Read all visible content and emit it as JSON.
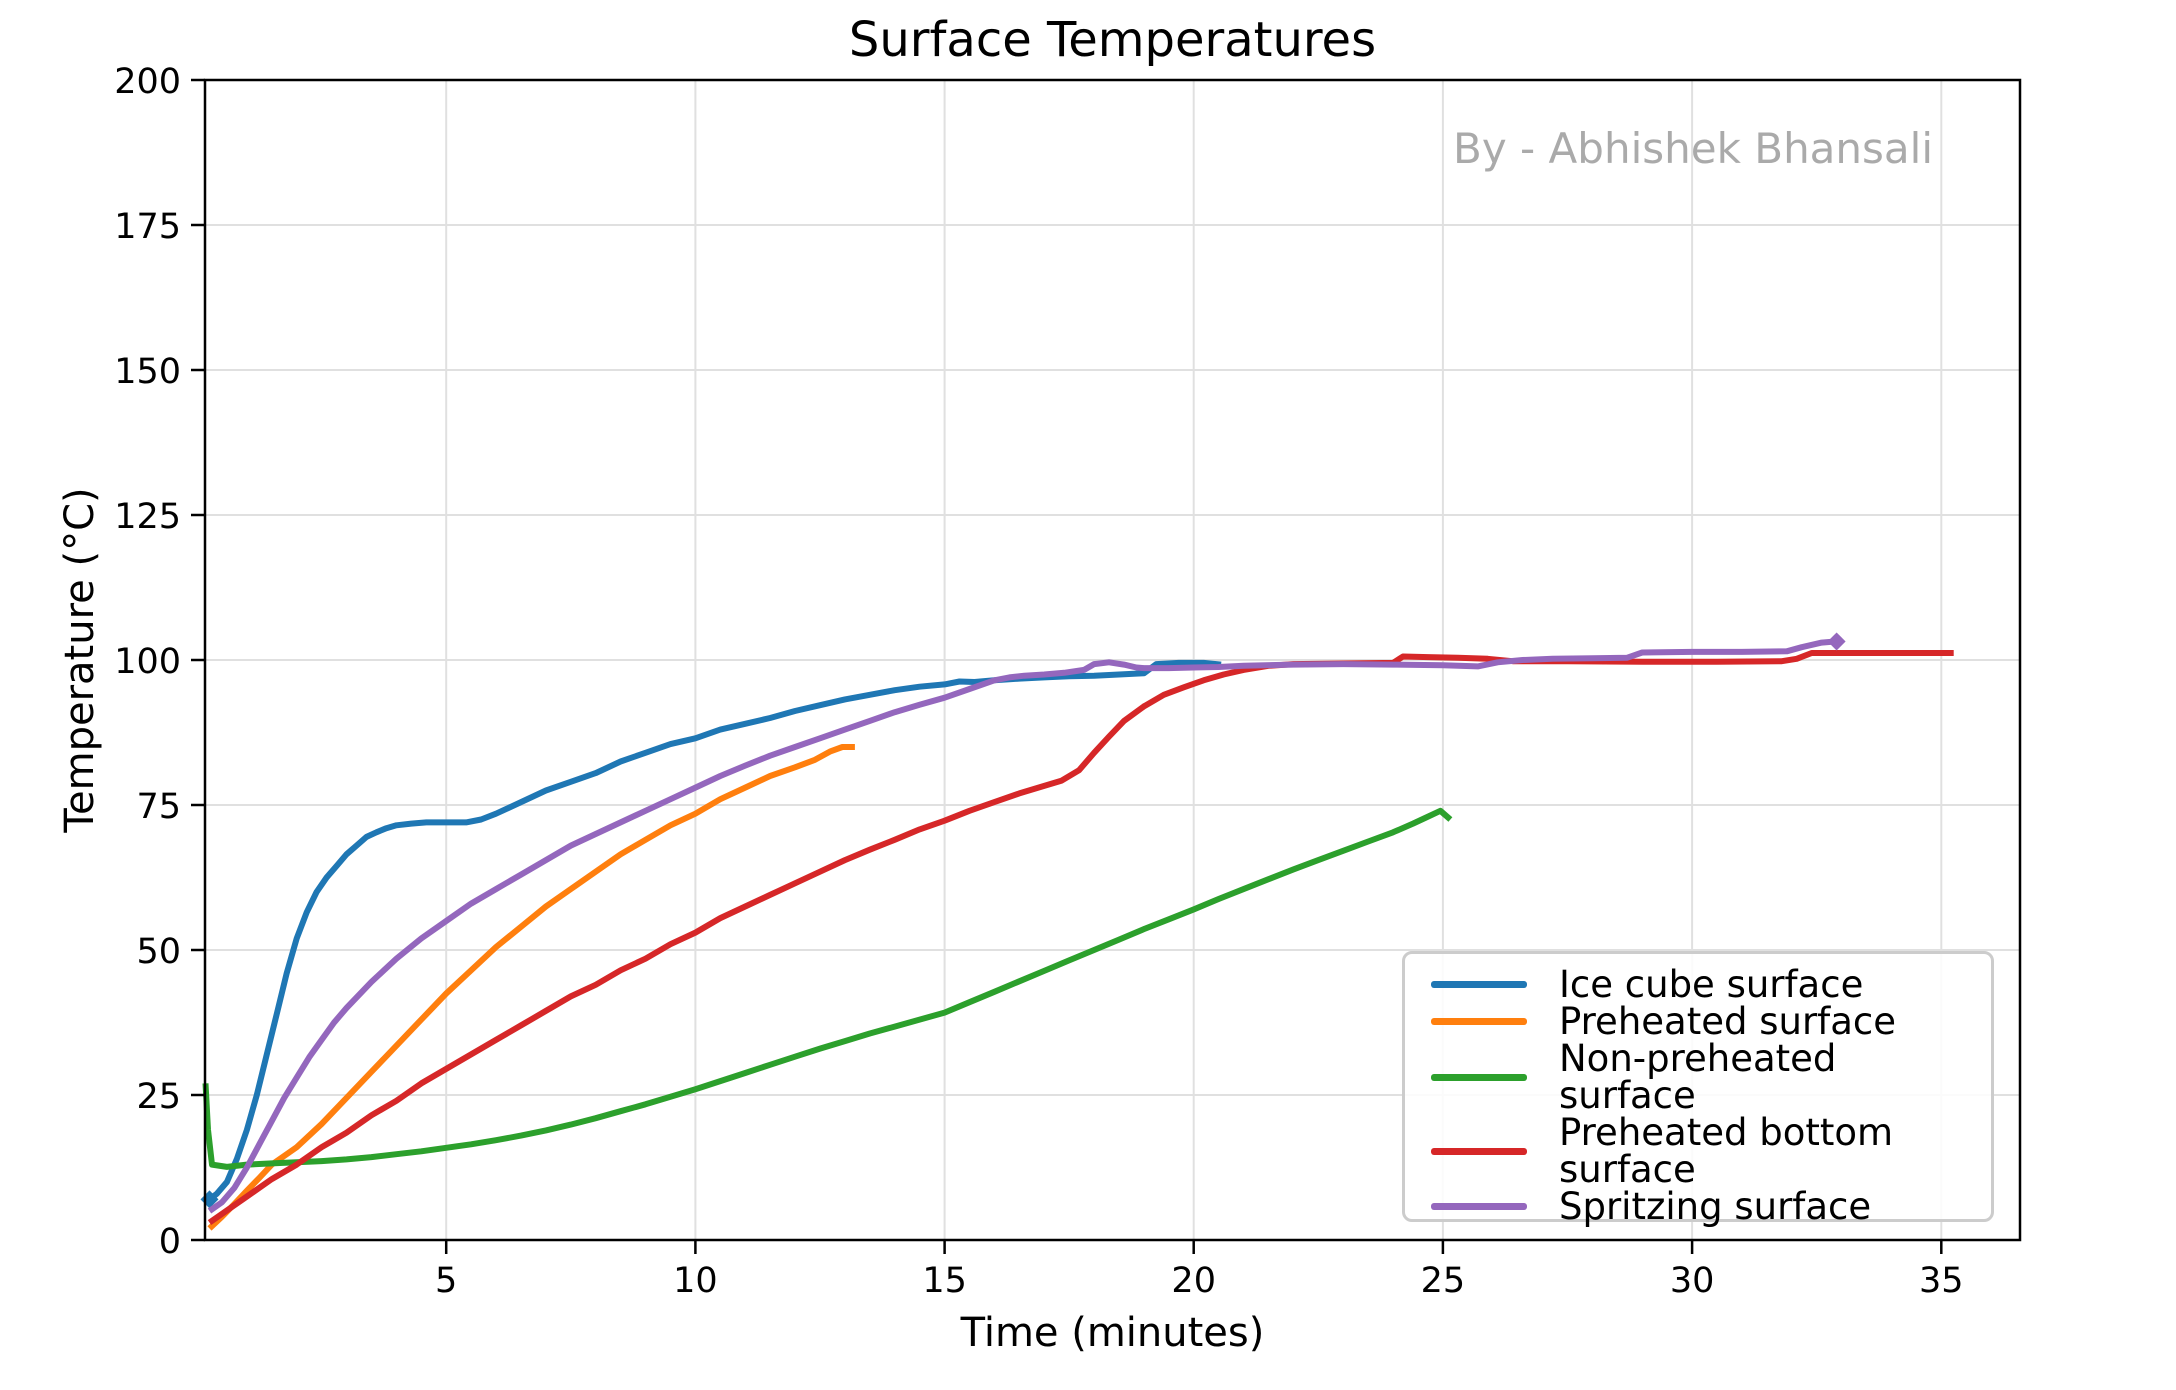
{
  "page": {
    "background": "#ffffff"
  },
  "chart_data": {
    "type": "line",
    "title": "Surface Temperatures",
    "annotation": "By - Abhishek Bhansali",
    "annotation_color": "#aaaaaa",
    "xlabel": "Time (minutes)",
    "ylabel": "Temperature (°C)",
    "xlim": [
      0.16,
      36.58
    ],
    "ylim": [
      0,
      200
    ],
    "xticks": [
      5,
      10,
      15,
      20,
      25,
      30,
      35
    ],
    "yticks": [
      0,
      25,
      50,
      75,
      100,
      125,
      150,
      175,
      200
    ],
    "grid": true,
    "grid_color": "#e0e0e0",
    "spine_color": "#000000",
    "legend_position": "lower right",
    "series": [
      {
        "name": "Ice cube surface",
        "color": "#1f77b4",
        "marker_start": true,
        "marker_end": false,
        "points": [
          [
            0.25,
            7
          ],
          [
            0.4,
            8
          ],
          [
            0.6,
            10
          ],
          [
            0.8,
            14
          ],
          [
            1,
            19
          ],
          [
            1.2,
            25
          ],
          [
            1.4,
            32
          ],
          [
            1.6,
            39
          ],
          [
            1.8,
            46
          ],
          [
            2,
            52
          ],
          [
            2.2,
            56.5
          ],
          [
            2.4,
            60
          ],
          [
            2.6,
            62.5
          ],
          [
            2.8,
            64.5
          ],
          [
            3,
            66.5
          ],
          [
            3.2,
            68
          ],
          [
            3.4,
            69.5
          ],
          [
            3.6,
            70.3
          ],
          [
            3.8,
            71
          ],
          [
            4,
            71.5
          ],
          [
            4.3,
            71.8
          ],
          [
            4.6,
            72
          ],
          [
            5,
            72
          ],
          [
            5.4,
            72
          ],
          [
            5.7,
            72.5
          ],
          [
            6,
            73.5
          ],
          [
            6.5,
            75.5
          ],
          [
            7,
            77.5
          ],
          [
            7.5,
            79
          ],
          [
            8,
            80.5
          ],
          [
            8.5,
            82.5
          ],
          [
            9,
            84
          ],
          [
            9.5,
            85.5
          ],
          [
            10,
            86.5
          ],
          [
            10.5,
            88
          ],
          [
            11,
            89
          ],
          [
            11.5,
            90
          ],
          [
            12,
            91.2
          ],
          [
            12.5,
            92.2
          ],
          [
            13,
            93.2
          ],
          [
            13.5,
            94
          ],
          [
            14,
            94.8
          ],
          [
            14.5,
            95.4
          ],
          [
            15,
            95.8
          ],
          [
            15.3,
            96.3
          ],
          [
            15.6,
            96.2
          ],
          [
            16,
            96.5
          ],
          [
            16.5,
            96.8
          ],
          [
            17,
            97
          ],
          [
            17.5,
            97.2
          ],
          [
            18,
            97.3
          ],
          [
            18.5,
            97.5
          ],
          [
            19,
            97.7
          ],
          [
            19.25,
            99.3
          ],
          [
            19.7,
            99.5
          ],
          [
            20.2,
            99.5
          ],
          [
            20.55,
            99.2
          ]
        ]
      },
      {
        "name": "Preheated surface",
        "color": "#ff7f0e",
        "marker_start": false,
        "marker_end": false,
        "points": [
          [
            0.25,
            2
          ],
          [
            0.5,
            4
          ],
          [
            0.75,
            6.2
          ],
          [
            1,
            8.5
          ],
          [
            1.25,
            10.7
          ],
          [
            1.5,
            13
          ],
          [
            1.75,
            14.5
          ],
          [
            2,
            16
          ],
          [
            2.5,
            20
          ],
          [
            3,
            24.5
          ],
          [
            3.5,
            29
          ],
          [
            4,
            33.5
          ],
          [
            4.5,
            38
          ],
          [
            5,
            42.5
          ],
          [
            5.5,
            46.5
          ],
          [
            6,
            50.5
          ],
          [
            6.5,
            54
          ],
          [
            7,
            57.5
          ],
          [
            7.5,
            60.5
          ],
          [
            8,
            63.5
          ],
          [
            8.5,
            66.5
          ],
          [
            9,
            69
          ],
          [
            9.5,
            71.5
          ],
          [
            10,
            73.5
          ],
          [
            10.5,
            76
          ],
          [
            11,
            78
          ],
          [
            11.5,
            80
          ],
          [
            12,
            81.5
          ],
          [
            12.4,
            82.8
          ],
          [
            12.7,
            84.2
          ],
          [
            12.95,
            85
          ],
          [
            13.2,
            85
          ]
        ]
      },
      {
        "name": "Non-preheated surface",
        "color": "#2ca02c",
        "marker_start": false,
        "marker_end": false,
        "points": [
          [
            0.17,
            27
          ],
          [
            0.22,
            19
          ],
          [
            0.3,
            13
          ],
          [
            0.6,
            12.6
          ],
          [
            1,
            13
          ],
          [
            1.5,
            13.2
          ],
          [
            2,
            13.4
          ],
          [
            2.5,
            13.6
          ],
          [
            3,
            13.9
          ],
          [
            3.5,
            14.3
          ],
          [
            4,
            14.8
          ],
          [
            4.5,
            15.3
          ],
          [
            5,
            15.9
          ],
          [
            5.5,
            16.5
          ],
          [
            6,
            17.2
          ],
          [
            6.5,
            18
          ],
          [
            7,
            18.9
          ],
          [
            7.5,
            19.9
          ],
          [
            8,
            21
          ],
          [
            8.5,
            22.2
          ],
          [
            9,
            23.4
          ],
          [
            9.5,
            24.7
          ],
          [
            10,
            26
          ],
          [
            10.5,
            27.4
          ],
          [
            11,
            28.8
          ],
          [
            11.5,
            30.2
          ],
          [
            12,
            31.6
          ],
          [
            12.5,
            33
          ],
          [
            13,
            34.3
          ],
          [
            13.5,
            35.6
          ],
          [
            14,
            36.8
          ],
          [
            14.5,
            38
          ],
          [
            15,
            39.2
          ],
          [
            15.5,
            41
          ],
          [
            16,
            42.8
          ],
          [
            16.5,
            44.6
          ],
          [
            17,
            46.4
          ],
          [
            17.5,
            48.2
          ],
          [
            18,
            50
          ],
          [
            18.5,
            51.8
          ],
          [
            19,
            53.6
          ],
          [
            19.5,
            55.3
          ],
          [
            20,
            57
          ],
          [
            20.5,
            58.8
          ],
          [
            21,
            60.5
          ],
          [
            21.5,
            62.2
          ],
          [
            22,
            63.9
          ],
          [
            22.5,
            65.5
          ],
          [
            23,
            67.1
          ],
          [
            23.5,
            68.7
          ],
          [
            24,
            70.3
          ],
          [
            24.4,
            71.8
          ],
          [
            24.7,
            73
          ],
          [
            24.95,
            74
          ],
          [
            25.15,
            72.5
          ]
        ]
      },
      {
        "name": "Preheated bottom surface",
        "color": "#d62728",
        "marker_start": false,
        "marker_end": false,
        "points": [
          [
            0.25,
            3
          ],
          [
            0.5,
            4.5
          ],
          [
            1,
            7.5
          ],
          [
            1.5,
            10.5
          ],
          [
            2,
            13
          ],
          [
            2.5,
            16
          ],
          [
            3,
            18.5
          ],
          [
            3.5,
            21.5
          ],
          [
            4,
            24
          ],
          [
            4.5,
            27
          ],
          [
            5,
            29.5
          ],
          [
            5.5,
            32
          ],
          [
            6,
            34.5
          ],
          [
            6.5,
            37
          ],
          [
            7,
            39.5
          ],
          [
            7.5,
            42
          ],
          [
            8,
            44
          ],
          [
            8.5,
            46.5
          ],
          [
            9,
            48.5
          ],
          [
            9.5,
            51
          ],
          [
            10,
            53
          ],
          [
            10.5,
            55.5
          ],
          [
            11,
            57.5
          ],
          [
            11.5,
            59.5
          ],
          [
            12,
            61.5
          ],
          [
            12.5,
            63.5
          ],
          [
            13,
            65.5
          ],
          [
            13.5,
            67.3
          ],
          [
            14,
            69
          ],
          [
            14.5,
            70.8
          ],
          [
            15,
            72.3
          ],
          [
            15.5,
            74
          ],
          [
            16,
            75.5
          ],
          [
            16.5,
            77
          ],
          [
            17,
            78.3
          ],
          [
            17.35,
            79.2
          ],
          [
            17.7,
            81
          ],
          [
            18,
            84
          ],
          [
            18.3,
            86.8
          ],
          [
            18.6,
            89.5
          ],
          [
            19,
            92
          ],
          [
            19.4,
            94
          ],
          [
            19.8,
            95.3
          ],
          [
            20.2,
            96.5
          ],
          [
            20.6,
            97.5
          ],
          [
            21,
            98.3
          ],
          [
            21.5,
            99
          ],
          [
            22,
            99.3
          ],
          [
            23,
            99.4
          ],
          [
            24,
            99.5
          ],
          [
            24.2,
            100.6
          ],
          [
            24.7,
            100.5
          ],
          [
            25.3,
            100.4
          ],
          [
            25.9,
            100.2
          ],
          [
            26.4,
            99.8
          ],
          [
            27.5,
            99.8
          ],
          [
            29,
            99.7
          ],
          [
            30.5,
            99.7
          ],
          [
            31.8,
            99.8
          ],
          [
            32.1,
            100.2
          ],
          [
            32.4,
            101.2
          ],
          [
            33.5,
            101.2
          ],
          [
            34.5,
            101.2
          ],
          [
            35.25,
            101.2
          ]
        ]
      },
      {
        "name": "Spritzing surface",
        "color": "#9467bd",
        "marker_start": false,
        "marker_end": true,
        "points": [
          [
            0.25,
            5
          ],
          [
            0.5,
            6.5
          ],
          [
            0.75,
            9
          ],
          [
            1,
            12.5
          ],
          [
            1.25,
            16.5
          ],
          [
            1.5,
            20.5
          ],
          [
            1.75,
            24.5
          ],
          [
            2,
            28
          ],
          [
            2.25,
            31.5
          ],
          [
            2.5,
            34.5
          ],
          [
            2.75,
            37.5
          ],
          [
            3,
            40
          ],
          [
            3.5,
            44.5
          ],
          [
            4,
            48.5
          ],
          [
            4.5,
            52
          ],
          [
            5,
            55
          ],
          [
            5.5,
            58
          ],
          [
            6,
            60.5
          ],
          [
            6.5,
            63
          ],
          [
            7,
            65.5
          ],
          [
            7.5,
            68
          ],
          [
            8,
            70
          ],
          [
            8.5,
            72
          ],
          [
            9,
            74
          ],
          [
            9.5,
            76
          ],
          [
            10,
            78
          ],
          [
            10.5,
            80
          ],
          [
            11,
            81.8
          ],
          [
            11.5,
            83.5
          ],
          [
            12,
            85
          ],
          [
            12.5,
            86.5
          ],
          [
            13,
            88
          ],
          [
            13.5,
            89.5
          ],
          [
            14,
            91
          ],
          [
            14.5,
            92.3
          ],
          [
            15,
            93.5
          ],
          [
            15.5,
            95
          ],
          [
            16,
            96.5
          ],
          [
            16.3,
            97
          ],
          [
            16.6,
            97.3
          ],
          [
            17,
            97.5
          ],
          [
            17.4,
            97.8
          ],
          [
            17.8,
            98.3
          ],
          [
            18,
            99.3
          ],
          [
            18.3,
            99.6
          ],
          [
            18.6,
            99.2
          ],
          [
            18.85,
            98.7
          ],
          [
            19,
            98.6
          ],
          [
            19.5,
            98.6
          ],
          [
            20,
            98.7
          ],
          [
            20.5,
            98.8
          ],
          [
            21,
            99
          ],
          [
            22,
            99.2
          ],
          [
            23,
            99.3
          ],
          [
            24,
            99.2
          ],
          [
            25,
            99.1
          ],
          [
            25.7,
            98.9
          ],
          [
            26.1,
            99.6
          ],
          [
            26.6,
            100
          ],
          [
            27.2,
            100.2
          ],
          [
            28,
            100.3
          ],
          [
            28.7,
            100.4
          ],
          [
            29,
            101.3
          ],
          [
            30,
            101.4
          ],
          [
            31,
            101.4
          ],
          [
            31.9,
            101.5
          ],
          [
            32.2,
            102.2
          ],
          [
            32.6,
            103
          ],
          [
            32.9,
            103.2
          ]
        ]
      }
    ]
  }
}
